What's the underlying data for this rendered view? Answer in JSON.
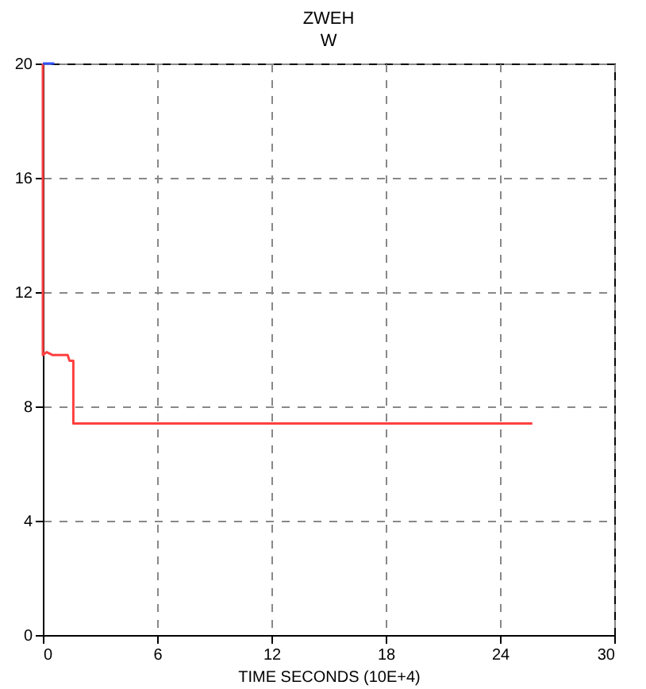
{
  "chart_data": {
    "type": "line",
    "title": "ZWEH",
    "xlabel": "TIME SECONDS (10E+4)",
    "ylabel": "W",
    "series": [
      {
        "color": "#ff4040",
        "x": [
          0,
          0,
          0.2,
          0.5,
          1.3,
          1.4,
          1.6,
          1.6,
          25.7
        ],
        "values": [
          20,
          9.8,
          9.9,
          9.8,
          9.8,
          9.6,
          9.6,
          7.4,
          7.4
        ]
      },
      {
        "color": "#3050ff",
        "x": [
          0,
          0.6
        ],
        "values": [
          20,
          20
        ]
      }
    ],
    "xlim": [
      0,
      30
    ],
    "xticks": [
      0,
      6,
      12,
      18,
      24,
      30
    ],
    "ylim": [
      0,
      20
    ],
    "yticks": [
      0,
      4,
      8,
      12,
      16,
      20
    ],
    "grid": true,
    "line_style": "solid"
  }
}
